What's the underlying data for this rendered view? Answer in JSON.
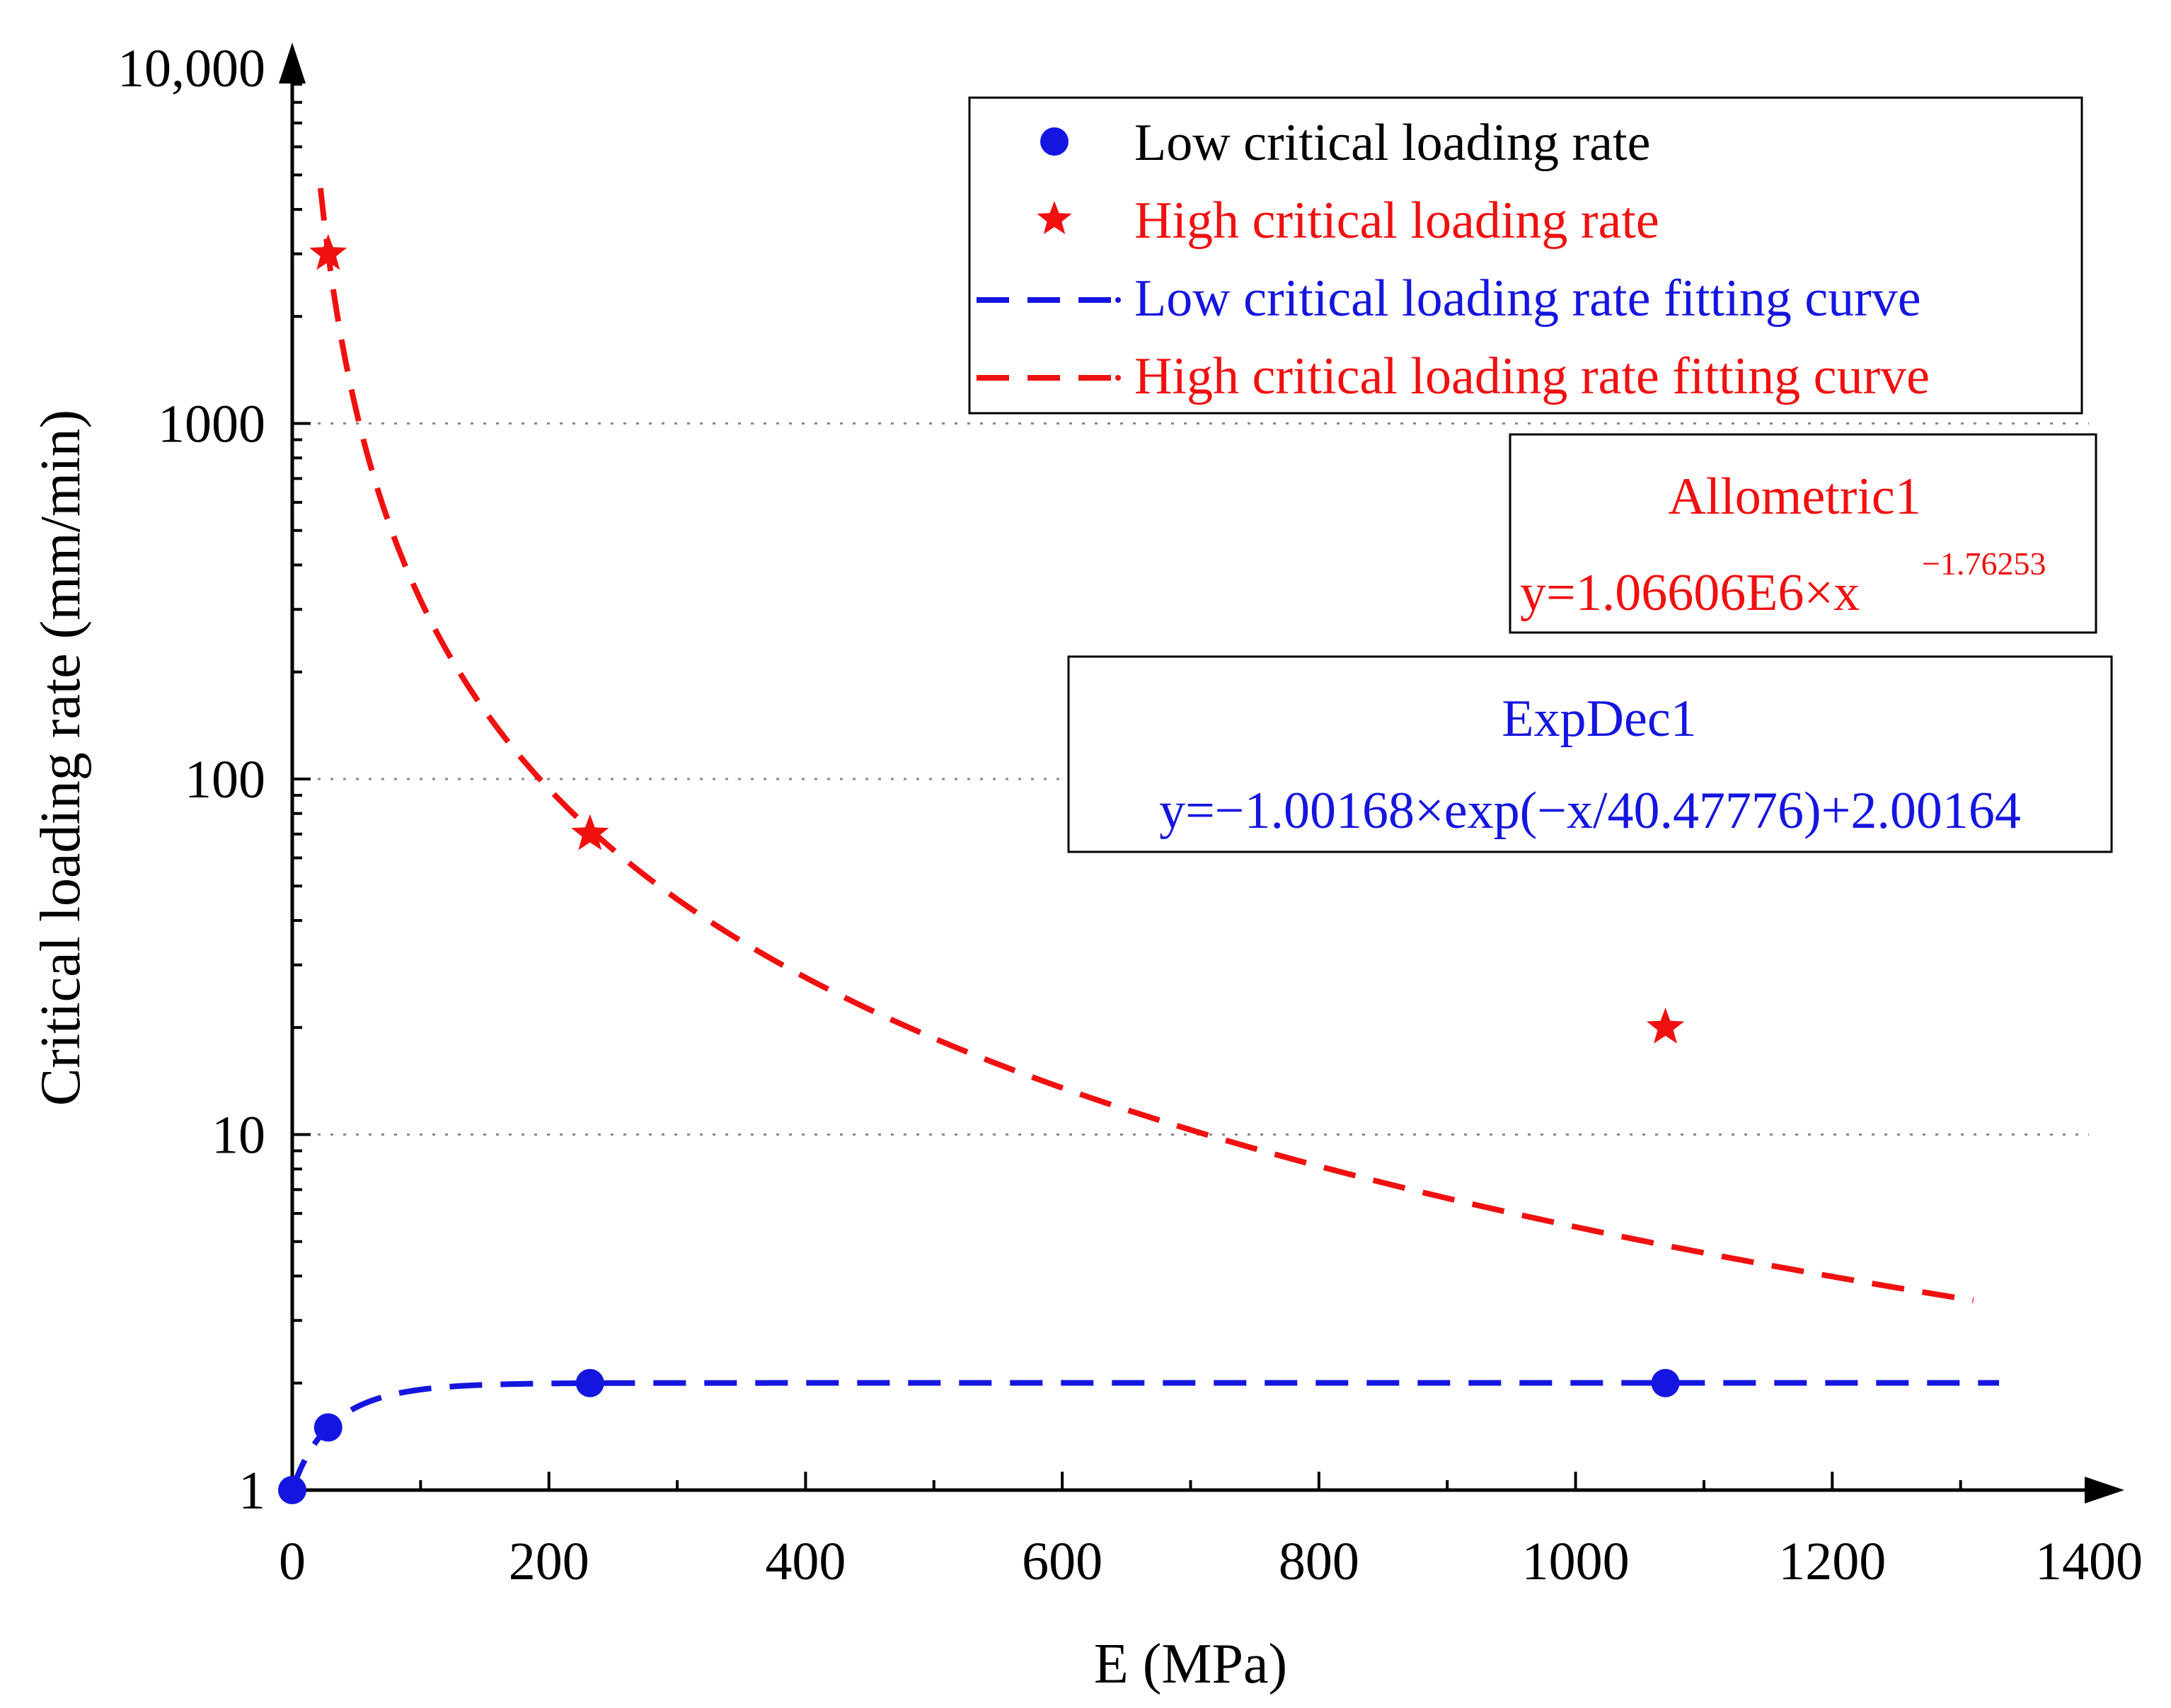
{
  "colors": {
    "low": "#1515e0",
    "high": "#f01010",
    "axis": "#000000",
    "grid": "#888888"
  },
  "chart_data": {
    "type": "scatter",
    "title": "",
    "xlabel": "E (MPa)",
    "ylabel": "Critical loading rate (mm/min)",
    "xlim": [
      0,
      1400
    ],
    "ylim": [
      1,
      10000
    ],
    "yscale": "log",
    "grid": "horizontal dotted at 1, 10, 100, 1000",
    "xticks": [
      0,
      200,
      400,
      600,
      800,
      1000,
      1200,
      1400
    ],
    "xtick_labels": [
      "0",
      "200",
      "400",
      "600",
      "800",
      "1000",
      "1200",
      "1400"
    ],
    "yticks": [
      1,
      10,
      100,
      1000,
      10000
    ],
    "ytick_labels": [
      "1",
      "10",
      "100",
      "1000",
      "10,000"
    ],
    "legend": {
      "position": "top-right",
      "entries": [
        {
          "label": "Low critical loading rate",
          "marker": "circle",
          "series": "low"
        },
        {
          "label": "High critical loading rate",
          "marker": "star",
          "series": "high"
        },
        {
          "label": "Low critical loading rate fitting curve",
          "marker": "dashed-line",
          "series": "low"
        },
        {
          "label": "High critical loading rate fitting curve",
          "marker": "dashed-line",
          "series": "high"
        }
      ]
    },
    "series": [
      {
        "name": "Low critical loading rate",
        "color_key": "low",
        "marker": "circle",
        "x": [
          0,
          28,
          232,
          1070
        ],
        "y": [
          1,
          1.5,
          2,
          2
        ]
      },
      {
        "name": "High critical loading rate",
        "color_key": "high",
        "marker": "star",
        "x": [
          28,
          232,
          1070
        ],
        "y": [
          3000,
          70,
          20
        ]
      }
    ],
    "fits": [
      {
        "name": "Low critical loading rate fitting curve",
        "color_key": "low",
        "model": "ExpDec1",
        "params": {
          "A1": -1.00168,
          "t1": 40.47776,
          "y0": 2.00164
        },
        "x_range": [
          0,
          1330
        ]
      },
      {
        "name": "High critical loading rate fitting curve",
        "color_key": "high",
        "model": "Allometric1",
        "params": {
          "a": 1066060,
          "b": -1.76253
        },
        "x_range": [
          22,
          1310
        ]
      }
    ],
    "annotations": [
      {
        "title": "Allometric1",
        "equation_base": "y=1.06606E6×x",
        "equation_exponent": "−1.76253",
        "color_key": "high"
      },
      {
        "title": "ExpDec1",
        "equation_base": "y=−1.00168×exp(−x/40.47776)+2.00164",
        "color_key": "low"
      }
    ]
  }
}
